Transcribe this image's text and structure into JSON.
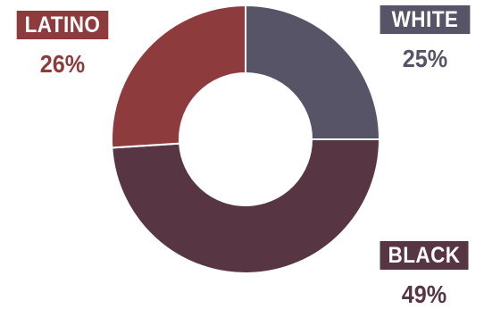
{
  "chart_data": {
    "type": "pie",
    "donut": true,
    "title": "",
    "slices": [
      {
        "label": "WHITE",
        "value": 25,
        "value_label": "25%",
        "color": "#575467"
      },
      {
        "label": "BLACK",
        "value": 49,
        "value_label": "49%",
        "color": "#583543"
      },
      {
        "label": "LATINO",
        "value": 26,
        "value_label": "26%",
        "color": "#8e3b3d"
      }
    ],
    "start": "12 o'clock",
    "direction": "clockwise",
    "legend": "none"
  }
}
